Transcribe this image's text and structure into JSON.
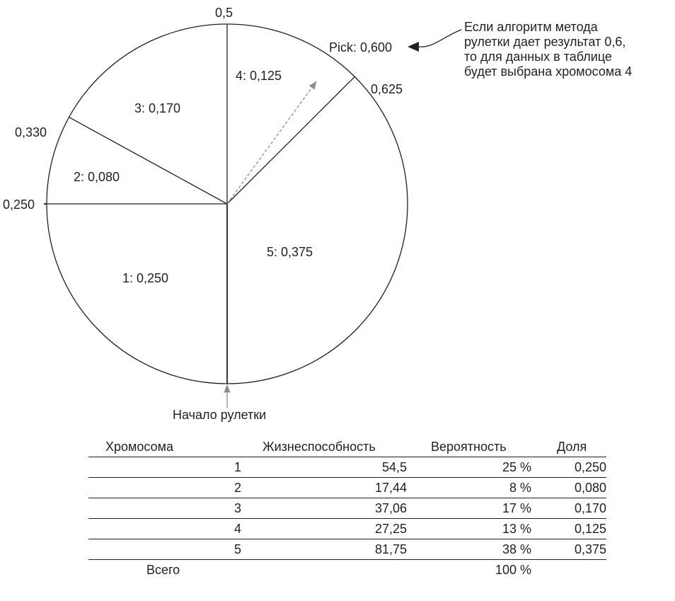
{
  "wheel": {
    "boundaries": {
      "b0250": "0,250",
      "b0330": "0,330",
      "b05": "0,5",
      "b0625": "0,625"
    },
    "pick_label": "Pick: 0,600",
    "start_label": "Начало рулетки",
    "annotation_lines": [
      "Если алгоритм метода",
      "рулетки дает результат 0,6,",
      "то для данных в таблице",
      "будет выбрана хромосома 4"
    ]
  },
  "chart_data": {
    "type": "pie",
    "slices": [
      {
        "label": "1: 0,250",
        "value": 0.25
      },
      {
        "label": "2: 0,080",
        "value": 0.08
      },
      {
        "label": "3: 0,170",
        "value": 0.17
      },
      {
        "label": "4: 0,125",
        "value": 0.125
      },
      {
        "label": "5: 0,375",
        "value": 0.375
      }
    ],
    "pick_value": 0.6
  },
  "table": {
    "headers": [
      "Хромосома",
      "Жизнеспособность",
      "Вероятность",
      "Доля"
    ],
    "rows": [
      [
        "1",
        "54,5",
        "25 %",
        "0,250"
      ],
      [
        "2",
        "17,44",
        "8 %",
        "0,080"
      ],
      [
        "3",
        "37,06",
        "17 %",
        "0,170"
      ],
      [
        "4",
        "27,25",
        "13 %",
        "0,125"
      ],
      [
        "5",
        "81,75",
        "38 %",
        "0,375"
      ]
    ],
    "total": {
      "label": "Всего",
      "probability": "100 %"
    }
  },
  "colors": {
    "ink": "#231f20",
    "arrow": "#8c8c8c"
  }
}
